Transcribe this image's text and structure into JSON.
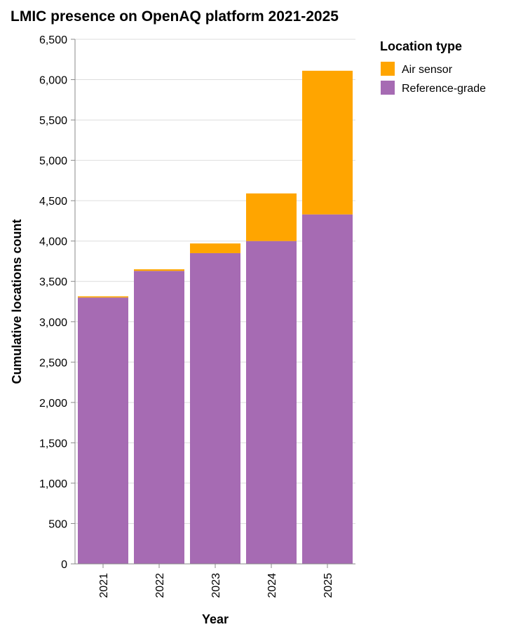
{
  "chart_data": {
    "type": "bar",
    "stacked": true,
    "title": "LMIC presence on OpenAQ platform 2021-2025",
    "xlabel": "Year",
    "ylabel": "Cumulative locations count",
    "ylim": [
      0,
      6500
    ],
    "ytick_step": 500,
    "grid": true,
    "categories": [
      "2021",
      "2022",
      "2023",
      "2024",
      "2025"
    ],
    "series": [
      {
        "name": "Reference-grade",
        "color": "#a66bb3",
        "values": [
          3300,
          3630,
          3850,
          4000,
          4330
        ]
      },
      {
        "name": "Air sensor",
        "color": "#ffa500",
        "values": [
          15,
          20,
          120,
          590,
          1780
        ]
      }
    ],
    "legend": {
      "title": "Location type",
      "position": "right",
      "entries": [
        "Air sensor",
        "Reference-grade"
      ]
    }
  }
}
